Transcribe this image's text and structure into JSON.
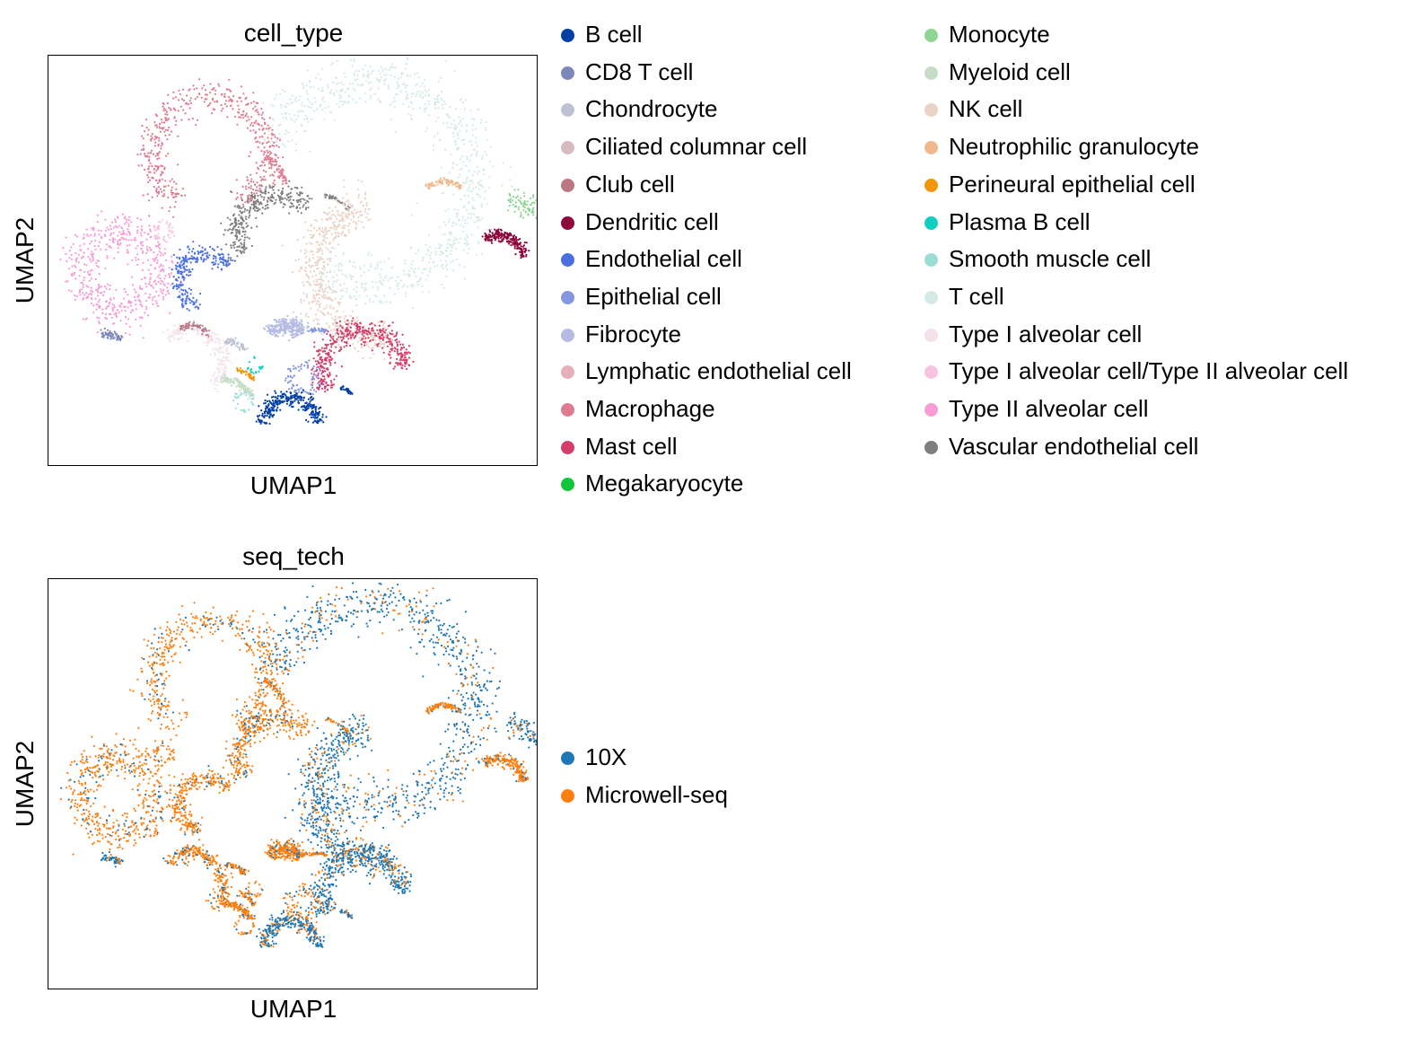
{
  "chart_data": [
    {
      "type": "scatter",
      "title": "cell_type",
      "xlabel": "UMAP1",
      "ylabel": "UMAP2",
      "grid": false,
      "legend_placement": "right",
      "legend_columns": 2,
      "series": [
        {
          "name": "B cell",
          "color": "#023fa5"
        },
        {
          "name": "CD8 T cell",
          "color": "#7d87b9"
        },
        {
          "name": "Chondrocyte",
          "color": "#bec1d4"
        },
        {
          "name": "Ciliated columnar cell",
          "color": "#d6bcc0"
        },
        {
          "name": "Club cell",
          "color": "#bb7784"
        },
        {
          "name": "Dendritic cell",
          "color": "#8e063b"
        },
        {
          "name": "Endothelial cell",
          "color": "#4a6fe3"
        },
        {
          "name": "Epithelial cell",
          "color": "#8595e1"
        },
        {
          "name": "Fibrocyte",
          "color": "#b5bbe3"
        },
        {
          "name": "Lymphatic endothelial cell",
          "color": "#e6afb9"
        },
        {
          "name": "Macrophage",
          "color": "#e07b91"
        },
        {
          "name": "Mast cell",
          "color": "#d33f6a"
        },
        {
          "name": "Megakaryocyte",
          "color": "#11c638"
        },
        {
          "name": "Monocyte",
          "color": "#8dd593"
        },
        {
          "name": "Myeloid cell",
          "color": "#c6dec7"
        },
        {
          "name": "NK cell",
          "color": "#ead3c6"
        },
        {
          "name": "Neutrophilic granulocyte",
          "color": "#f0b98d"
        },
        {
          "name": "Perineural epithelial cell",
          "color": "#ef9708"
        },
        {
          "name": "Plasma B cell",
          "color": "#0fcfc0"
        },
        {
          "name": "Smooth muscle cell",
          "color": "#9cded6"
        },
        {
          "name": "T cell",
          "color": "#d5eae7"
        },
        {
          "name": "Type I alveolar cell",
          "color": "#f3e1eb"
        },
        {
          "name": "Type I alveolar cell/Type II alveolar cell",
          "color": "#f6c4e1"
        },
        {
          "name": "Type II alveolar cell",
          "color": "#f79cd4"
        },
        {
          "name": "Vascular endothelial cell",
          "color": "#7f7f7f"
        }
      ]
    },
    {
      "type": "scatter",
      "title": "seq_tech",
      "xlabel": "UMAP1",
      "ylabel": "UMAP2",
      "grid": false,
      "legend_placement": "right",
      "legend_columns": 1,
      "series": [
        {
          "name": "10X",
          "color": "#1f77b4"
        },
        {
          "name": "Microwell-seq",
          "color": "#ff7f0e"
        }
      ]
    }
  ]
}
